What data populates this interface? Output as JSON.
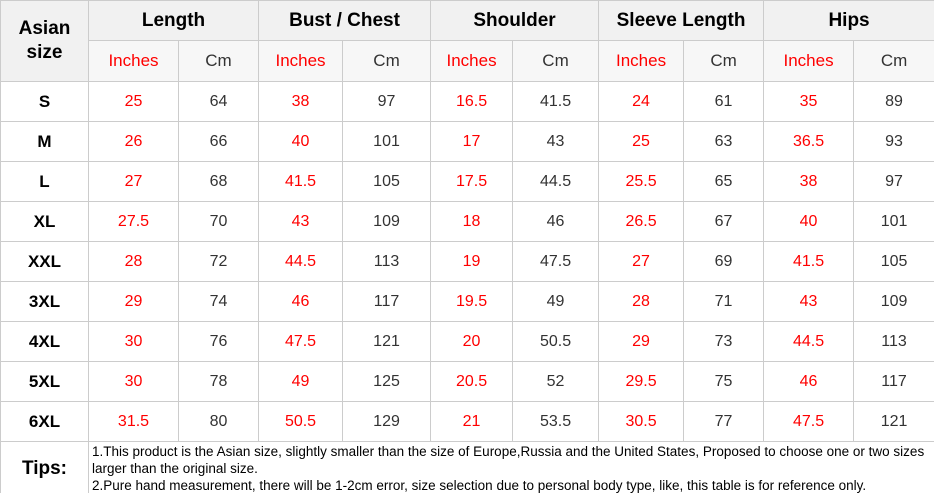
{
  "chart_data": {
    "type": "table",
    "title": "Asian size garment measurement chart",
    "corner_header": "Asian size",
    "column_groups": [
      {
        "label": "Length"
      },
      {
        "label": "Bust / Chest"
      },
      {
        "label": "Shoulder"
      },
      {
        "label": "Sleeve Length"
      },
      {
        "label": "Hips"
      }
    ],
    "unit_headers": {
      "inches": "Inches",
      "cm": "Cm"
    },
    "rows": [
      {
        "size": "S",
        "values": [
          "25",
          "64",
          "38",
          "97",
          "16.5",
          "41.5",
          "24",
          "61",
          "35",
          "89"
        ]
      },
      {
        "size": "M",
        "values": [
          "26",
          "66",
          "40",
          "101",
          "17",
          "43",
          "25",
          "63",
          "36.5",
          "93"
        ]
      },
      {
        "size": "L",
        "values": [
          "27",
          "68",
          "41.5",
          "105",
          "17.5",
          "44.5",
          "25.5",
          "65",
          "38",
          "97"
        ]
      },
      {
        "size": "XL",
        "values": [
          "27.5",
          "70",
          "43",
          "109",
          "18",
          "46",
          "26.5",
          "67",
          "40",
          "101"
        ]
      },
      {
        "size": "XXL",
        "values": [
          "28",
          "72",
          "44.5",
          "113",
          "19",
          "47.5",
          "27",
          "69",
          "41.5",
          "105"
        ]
      },
      {
        "size": "3XL",
        "values": [
          "29",
          "74",
          "46",
          "117",
          "19.5",
          "49",
          "28",
          "71",
          "43",
          "109"
        ]
      },
      {
        "size": "4XL",
        "values": [
          "30",
          "76",
          "47.5",
          "121",
          "20",
          "50.5",
          "29",
          "73",
          "44.5",
          "113"
        ]
      },
      {
        "size": "5XL",
        "values": [
          "30",
          "78",
          "49",
          "125",
          "20.5",
          "52",
          "29.5",
          "75",
          "46",
          "117"
        ]
      },
      {
        "size": "6XL",
        "values": [
          "31.5",
          "80",
          "50.5",
          "129",
          "21",
          "53.5",
          "30.5",
          "77",
          "47.5",
          "121"
        ]
      }
    ],
    "tips": {
      "label": "Tips:",
      "lines": [
        "1.This product is the Asian size, slightly smaller than the size of Europe,Russia and the United States, Proposed to choose one or two sizes larger than the original size.",
        "2.Pure hand measurement, there will be 1-2cm error, size selection due to personal body type, like, this table is for reference only."
      ]
    }
  },
  "colors": {
    "accent_red": "#ff0000",
    "text_dark": "#333333",
    "header_bg": "#f1f1f1",
    "subheader_bg": "#f7f7f7",
    "border": "#cccccc",
    "row_bg": "#ffffff"
  }
}
